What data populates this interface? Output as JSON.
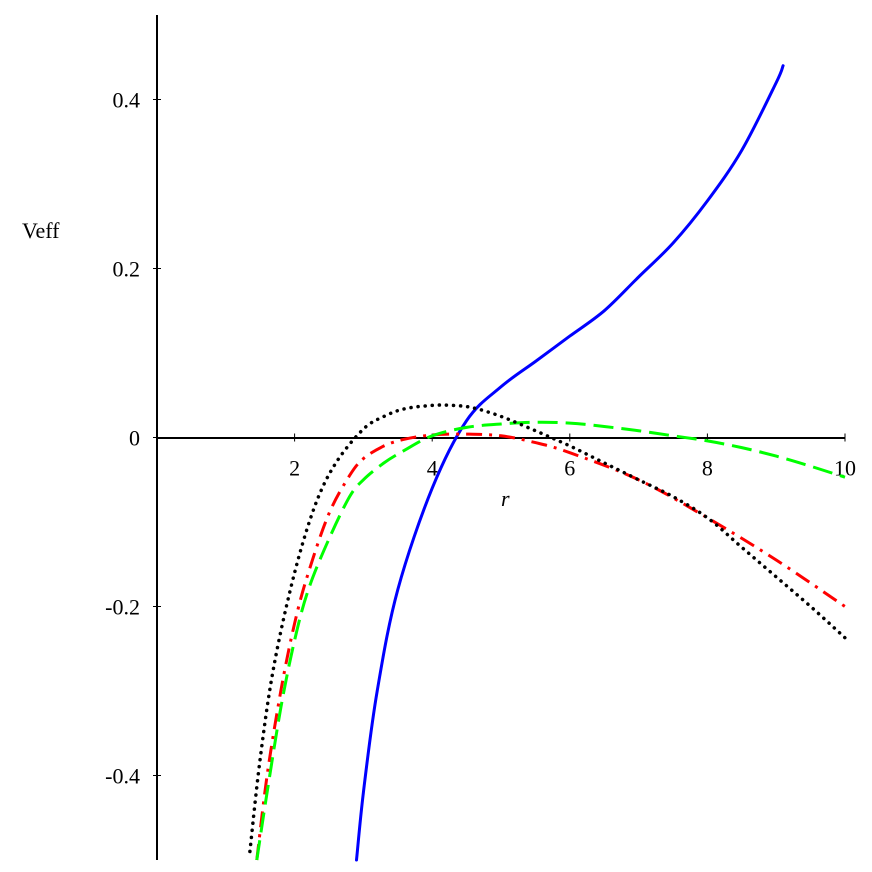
{
  "chart_data": {
    "type": "line",
    "title": "",
    "xlabel": "r",
    "ylabel": "Veff",
    "xlim": [
      0,
      10
    ],
    "ylim": [
      -0.5,
      0.5
    ],
    "x_ticks": [
      2,
      4,
      6,
      8,
      10
    ],
    "x_tick_labels": [
      "2",
      "4",
      "6",
      "8",
      "10"
    ],
    "y_ticks": [
      -0.4,
      -0.2,
      0,
      0.2,
      0.4
    ],
    "y_tick_labels": [
      "-0.4",
      "-0.2",
      "0",
      "0.2",
      "0.4"
    ],
    "grid": false,
    "series": [
      {
        "color": "#0000ff",
        "style": "solid",
        "x": [
          2.9,
          3.0,
          3.2,
          3.5,
          4.0,
          4.5,
          5.0,
          5.5,
          6.0,
          6.5,
          7.0,
          7.5,
          8.0,
          8.5,
          9.0,
          9.1
        ],
        "y": [
          -0.5,
          -0.42,
          -0.3,
          -0.18,
          -0.06,
          0.02,
          0.06,
          0.09,
          0.12,
          0.15,
          0.19,
          0.23,
          0.28,
          0.34,
          0.42,
          0.44
        ]
      },
      {
        "color": "#ff0000",
        "style": "dashdot",
        "x": [
          1.45,
          1.6,
          1.8,
          2.0,
          2.2,
          2.5,
          2.8,
          3.0,
          3.3,
          3.6,
          4.0,
          4.5,
          5.0,
          5.5,
          6.0,
          7.0,
          8.0,
          9.0,
          10.0
        ],
        "y": [
          -0.5,
          -0.4,
          -0.3,
          -0.22,
          -0.16,
          -0.09,
          -0.045,
          -0.025,
          -0.01,
          -0.002,
          0.003,
          0.004,
          0.002,
          -0.006,
          -0.018,
          -0.05,
          -0.095,
          -0.145,
          -0.2
        ]
      },
      {
        "color": "#00ff00",
        "style": "dashed",
        "x": [
          1.45,
          1.6,
          1.8,
          2.0,
          2.2,
          2.5,
          2.8,
          3.0,
          3.3,
          3.6,
          4.0,
          4.5,
          5.0,
          5.5,
          6.0,
          6.5,
          7.0,
          7.5,
          8.0,
          8.5,
          9.0,
          9.5,
          10.0
        ],
        "y": [
          -0.5,
          -0.42,
          -0.32,
          -0.24,
          -0.18,
          -0.12,
          -0.07,
          -0.05,
          -0.03,
          -0.015,
          0.002,
          0.012,
          0.016,
          0.018,
          0.017,
          0.013,
          0.008,
          0.002,
          -0.004,
          -0.012,
          -0.022,
          -0.034,
          -0.047
        ]
      },
      {
        "color": "#000000",
        "style": "dotted",
        "x": [
          1.35,
          1.5,
          1.7,
          2.0,
          2.3,
          2.6,
          3.0,
          3.3,
          3.6,
          4.0,
          4.3,
          4.6,
          5.0,
          5.5,
          6.0,
          6.5,
          7.0,
          7.5,
          8.0,
          8.5,
          9.0,
          9.5,
          10.0
        ],
        "y": [
          -0.49,
          -0.38,
          -0.27,
          -0.16,
          -0.08,
          -0.03,
          0.01,
          0.025,
          0.034,
          0.038,
          0.038,
          0.035,
          0.025,
          0.008,
          -0.01,
          -0.03,
          -0.05,
          -0.07,
          -0.095,
          -0.13,
          -0.165,
          -0.2,
          -0.237
        ]
      }
    ]
  }
}
